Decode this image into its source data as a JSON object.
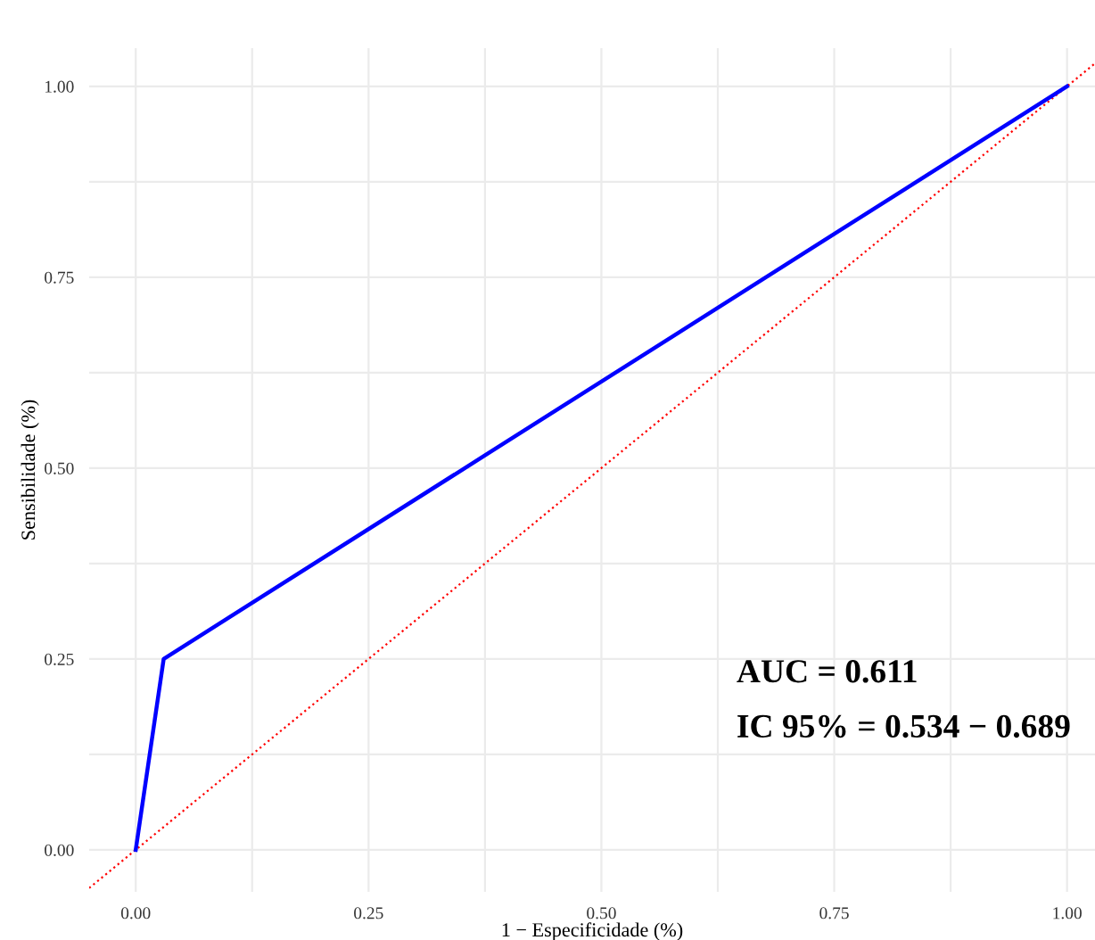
{
  "chart_data": {
    "type": "line",
    "xlabel": "1 − Especificidade (%)",
    "ylabel": "Sensibilidade (%)",
    "x": [
      0,
      0.03,
      1
    ],
    "series": [
      {
        "color": "#0000ff",
        "values": [
          0,
          0.25,
          1
        ],
        "line_style": "solid"
      },
      {
        "color": "#ff0000",
        "x": [
          -0.05,
          1.03
        ],
        "values": [
          -0.05,
          1.03
        ],
        "line_style": "dotted"
      }
    ],
    "xlim": [
      -0.05,
      1.03
    ],
    "ylim": [
      -0.055,
      1.05
    ],
    "xticks": [
      {
        "value": 0,
        "label": "0.00"
      },
      {
        "value": 0.125,
        "label": null
      },
      0.25,
      {
        "value": 0.375,
        "label": null
      },
      {
        "value": 0.5,
        "label": "0.50"
      },
      {
        "value": 0.625,
        "label": null
      },
      0.75,
      {
        "value": 0.875,
        "label": null
      },
      {
        "value": 1,
        "label": "1.00"
      }
    ],
    "yticks": [
      {
        "value": 0,
        "label": "0.00"
      },
      {
        "value": 0.125,
        "label": null
      },
      0.25,
      {
        "value": 0.375,
        "label": null
      },
      {
        "value": 0.5,
        "label": "0.50"
      },
      {
        "value": 0.625,
        "label": null
      },
      0.75,
      {
        "value": 0.875,
        "label": null
      },
      {
        "value": 1,
        "label": "1.00"
      }
    ],
    "grid": true,
    "legend": false,
    "marker": "none",
    "annotations": [
      "AUC = 0.611",
      "IC 95% = 0.534 − 0.689"
    ]
  }
}
